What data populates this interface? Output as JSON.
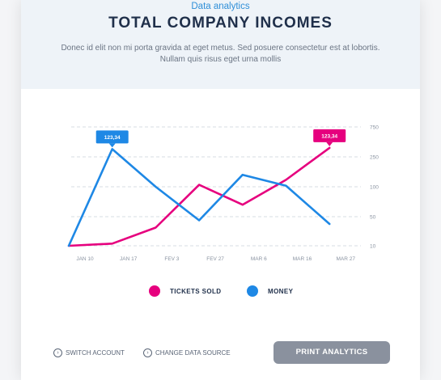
{
  "header": {
    "subtitle": "Data analytics",
    "title": "TOTAL COMPANY INCOMES",
    "description_line1": "Donec id elit non mi porta gravida at eget metus. Sed posuere consectetur est at lobortis.",
    "description_line2": "Nullam quis risus eget urna mollis"
  },
  "chart_data": {
    "type": "line",
    "categories": [
      "JAN 10",
      "JAN 17",
      "FEV 3",
      "FEV 27",
      "MAR 6",
      "MAR 16",
      "MAR 27"
    ],
    "y_ticks": [
      "750",
      "250",
      "100",
      "50",
      "10"
    ],
    "series": [
      {
        "name": "TICKETS SOLD",
        "color": "#e6007e",
        "values": [
          10,
          13,
          35,
          110,
          70,
          135,
          400
        ],
        "callout": "123,34"
      },
      {
        "name": "MONEY",
        "color": "#1e88e5",
        "values": [
          10,
          380,
          100,
          45,
          160,
          105,
          40
        ],
        "callout": "123,34"
      }
    ],
    "grid": true,
    "legend": "bottom"
  },
  "legend": {
    "items": [
      {
        "label": "TICKETS SOLD",
        "color": "#e6007e"
      },
      {
        "label": "MONEY",
        "color": "#1e88e5"
      }
    ]
  },
  "footer": {
    "switch_account": "SWITCH ACCOUNT",
    "change_source": "CHANGE DATA SOURCE",
    "print_button": "PRINT ANALYTICS",
    "link_icon": "chevron-circle-icon"
  }
}
